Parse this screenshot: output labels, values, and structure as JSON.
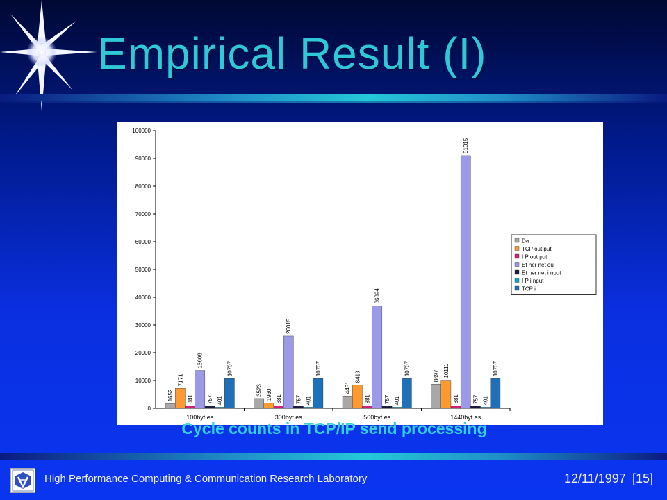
{
  "slide": {
    "title": "Empirical Result (I)",
    "caption": "Cycle counts in TCP/IP send processing",
    "footer_lab": "High Performance Computing & Communication Research Laboratory",
    "footer_date": "12/11/1997",
    "footer_page": "[15]"
  },
  "colors": {
    "title": "#30c8d8",
    "caption": "#35d0e0",
    "chart_bg": "#ffffff"
  },
  "chart_data": {
    "type": "bar",
    "categories": [
      "100byt es",
      "300byt es",
      "500byt es",
      "1440byt es"
    ],
    "ylim": [
      0,
      100000
    ],
    "yticks": [
      "0",
      "10000",
      "20000",
      "30000",
      "40000",
      "50000",
      "60000",
      "70000",
      "80000",
      "90000",
      "100000"
    ],
    "grid": false,
    "legend_position": "right",
    "series": [
      {
        "name": "Da",
        "color": "#a8a8a8",
        "values": [
          1652,
          3523,
          4451,
          8697
        ],
        "labels": [
          "1652",
          "3523",
          "4451",
          "8697"
        ]
      },
      {
        "name": "TCP out put",
        "color": "#ff9a30",
        "values": [
          7171,
          1930,
          8413,
          10111
        ],
        "labels": [
          "7171",
          "1930",
          "8413",
          "10111"
        ]
      },
      {
        "name": "I P out put",
        "color": "#d0207a",
        "values": [
          881,
          881,
          881,
          881
        ],
        "labels": [
          "881",
          "881",
          "881",
          "881"
        ]
      },
      {
        "name": "Et her net ou",
        "color": "#9a9ae8",
        "values": [
          13606,
          26015,
          36894,
          91015
        ],
        "labels": [
          "13606",
          "26015",
          "36894",
          "91015"
        ]
      },
      {
        "name": "Et her net i nput",
        "color": "#1a1a40",
        "values": [
          757,
          757,
          757,
          757
        ],
        "labels": [
          "757",
          "757",
          "757",
          "757"
        ]
      },
      {
        "name": "I P i nput",
        "color": "#1aa0c0",
        "values": [
          401,
          401,
          401,
          401
        ],
        "labels": [
          "401",
          "401",
          "401",
          "401"
        ]
      },
      {
        "name": "TCP i",
        "color": "#1e70b8",
        "values": [
          10707,
          10707,
          10707,
          10707
        ],
        "labels": [
          "10707",
          "10707",
          "10707",
          "10707"
        ]
      }
    ]
  }
}
